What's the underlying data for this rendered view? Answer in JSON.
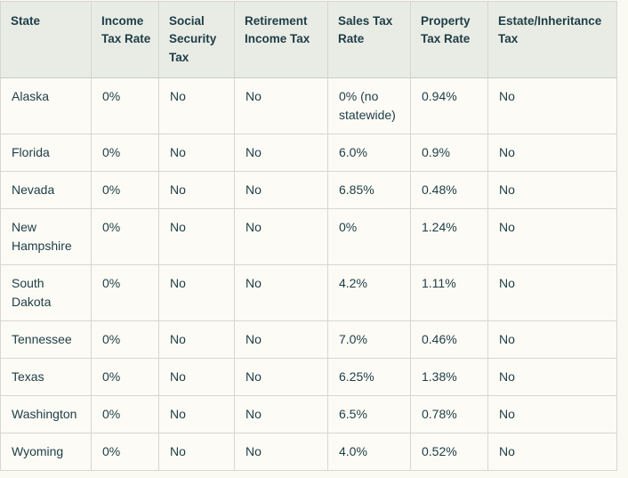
{
  "table": {
    "columns": [
      "State",
      "Income Tax Rate",
      "Social Security Tax",
      "Retirement Income Tax",
      "Sales Tax Rate",
      "Property Tax Rate",
      "Estate/Inheritance Tax"
    ],
    "rows": [
      [
        "Alaska",
        "0%",
        "No",
        "No",
        "0% (no statewide)",
        "0.94%",
        "No"
      ],
      [
        "Florida",
        "0%",
        "No",
        "No",
        "6.0%",
        "0.9%",
        "No"
      ],
      [
        "Nevada",
        "0%",
        "No",
        "No",
        "6.85%",
        "0.48%",
        "No"
      ],
      [
        "New Hampshire",
        "0%",
        "No",
        "No",
        "0%",
        "1.24%",
        "No"
      ],
      [
        "South Dakota",
        "0%",
        "No",
        "No",
        "4.2%",
        "1.11%",
        "No"
      ],
      [
        "Tennessee",
        "0%",
        "No",
        "No",
        "7.0%",
        "0.46%",
        "No"
      ],
      [
        "Texas",
        "0%",
        "No",
        "No",
        "6.25%",
        "1.38%",
        "No"
      ],
      [
        "Washington",
        "0%",
        "No",
        "No",
        "6.5%",
        "0.78%",
        "No"
      ],
      [
        "Wyoming",
        "0%",
        "No",
        "No",
        "4.0%",
        "0.52%",
        "No"
      ]
    ]
  },
  "colors": {
    "page_background": "#fbfaf2",
    "header_background": "#e9ece5",
    "cell_background": "#fcfbf5",
    "text": "#1d3d46",
    "border": "#d7d6d1"
  }
}
